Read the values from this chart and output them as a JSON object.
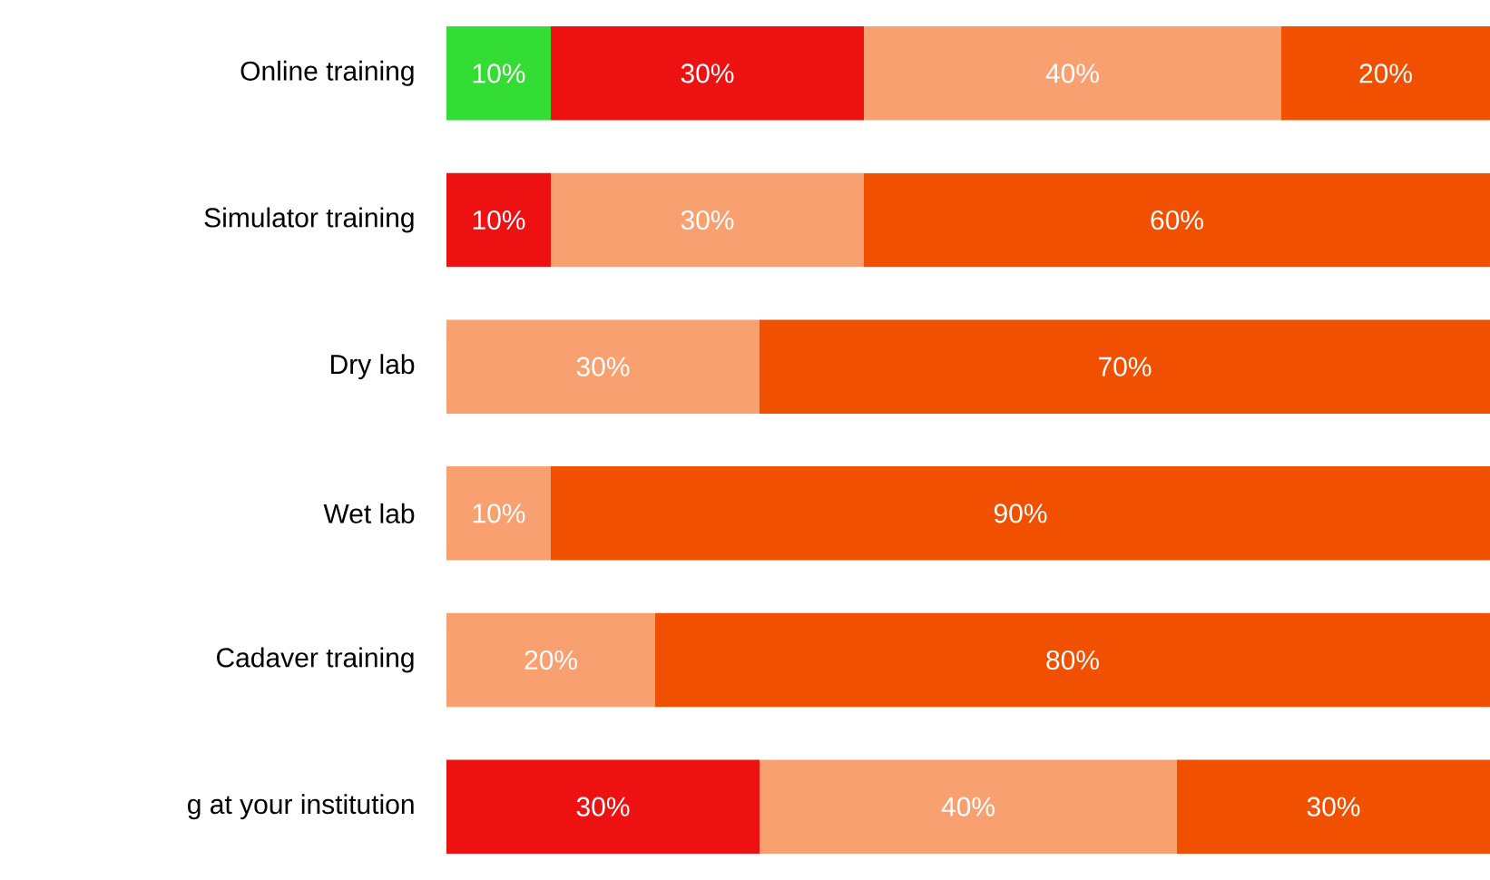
{
  "chart_data": {
    "type": "bar",
    "orientation": "horizontal",
    "stacked": true,
    "categories": [
      "Online training",
      "Simulator training",
      "Dry lab",
      "Wet lab",
      "Cadaver training",
      "g at your institution"
    ],
    "series": [
      {
        "color": "#33dd33",
        "values": [
          10,
          null,
          null,
          null,
          null,
          null
        ],
        "value_labels": [
          "10%",
          null,
          null,
          null,
          null,
          null
        ]
      },
      {
        "color": "#ee1111",
        "values": [
          30,
          10,
          null,
          null,
          null,
          30
        ],
        "value_labels": [
          "30%",
          "10%",
          null,
          null,
          null,
          "30%"
        ]
      },
      {
        "color": "#f9a070",
        "values": [
          40,
          30,
          30,
          10,
          20,
          40
        ],
        "value_labels": [
          "40%",
          "30%",
          "30%",
          "10%",
          "20%",
          "40%"
        ]
      },
      {
        "color": "#f05000",
        "values": [
          20,
          60,
          70,
          90,
          80,
          30
        ],
        "value_labels": [
          "20%",
          "60%",
          "70%",
          "90%",
          "80%",
          "30%"
        ]
      }
    ]
  }
}
